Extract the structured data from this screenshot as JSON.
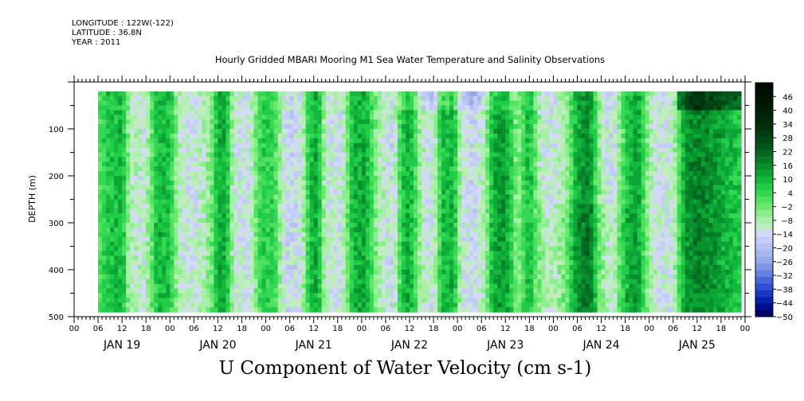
{
  "header": {
    "longitude": "LONGITUDE : 122W(-122)",
    "latitude": "LATITUDE : 36.8N",
    "year": "YEAR : 2011"
  },
  "chart_data": {
    "type": "heatmap",
    "title": "Hourly Gridded MBARI Mooring M1 Sea Water Temperature and Salinity Observations",
    "variable": "U Component of Water Velocity (cm s-1)",
    "ylabel": "DEPTH (m)",
    "xlabel": "",
    "ylim": [
      500,
      0
    ],
    "y_ticks": [
      "100",
      "200",
      "300",
      "400",
      "500"
    ],
    "y_values": [
      100,
      200,
      300,
      400,
      500
    ],
    "x_hour_ticks": [
      "00",
      "06",
      "12",
      "18",
      "00",
      "06",
      "12",
      "18",
      "00",
      "06",
      "12",
      "18",
      "00",
      "06",
      "12",
      "18",
      "00",
      "06",
      "12",
      "18",
      "00",
      "06",
      "12",
      "18",
      "00",
      "06",
      "12",
      "18",
      "00"
    ],
    "x_day_labels": [
      "JAN 19",
      "JAN 20",
      "JAN 21",
      "JAN 22",
      "JAN 23",
      "JAN 24",
      "JAN 25"
    ],
    "data_range": {
      "start": "JAN 19 06:00",
      "end": "JAN 25 23:00",
      "depth_min": 20,
      "depth_max": 490
    },
    "colorbar": {
      "labels": [
        "46",
        "40",
        "34",
        "28",
        "22",
        "16",
        "10",
        "4",
        "-2",
        "-8",
        "-14",
        "-20",
        "-26",
        "-32",
        "-38",
        "-44",
        "-50"
      ],
      "min": -50,
      "max": 52,
      "step": 3,
      "colors": [
        "#000068",
        "#000e8c",
        "#0022aa",
        "#1a36c2",
        "#2f4ed4",
        "#4a66dc",
        "#6680e2",
        "#7f96e8",
        "#96a8ec",
        "#a8b6f0",
        "#b6c2f4",
        "#c4ccf8",
        "#d2daf8",
        "#c0ecc0",
        "#a8f0a8",
        "#8aee8a",
        "#6ae86e",
        "#4ee060",
        "#34d854",
        "#20cc48",
        "#14b83c",
        "#0ca434",
        "#08902c",
        "#067c26",
        "#046820",
        "#03561a",
        "#024816",
        "#013c12",
        "#01300e",
        "#00280a",
        "#002208",
        "#001c06",
        "#001604",
        "#001002",
        "#000c01"
      ]
    },
    "pattern": "Alternating vertical bands of positive (green, eastward) and negative (blue, westward) U velocity across the 7-day record; strongest negative near surface on JAN 22-23, strongest positive near surface on JAN 25."
  }
}
